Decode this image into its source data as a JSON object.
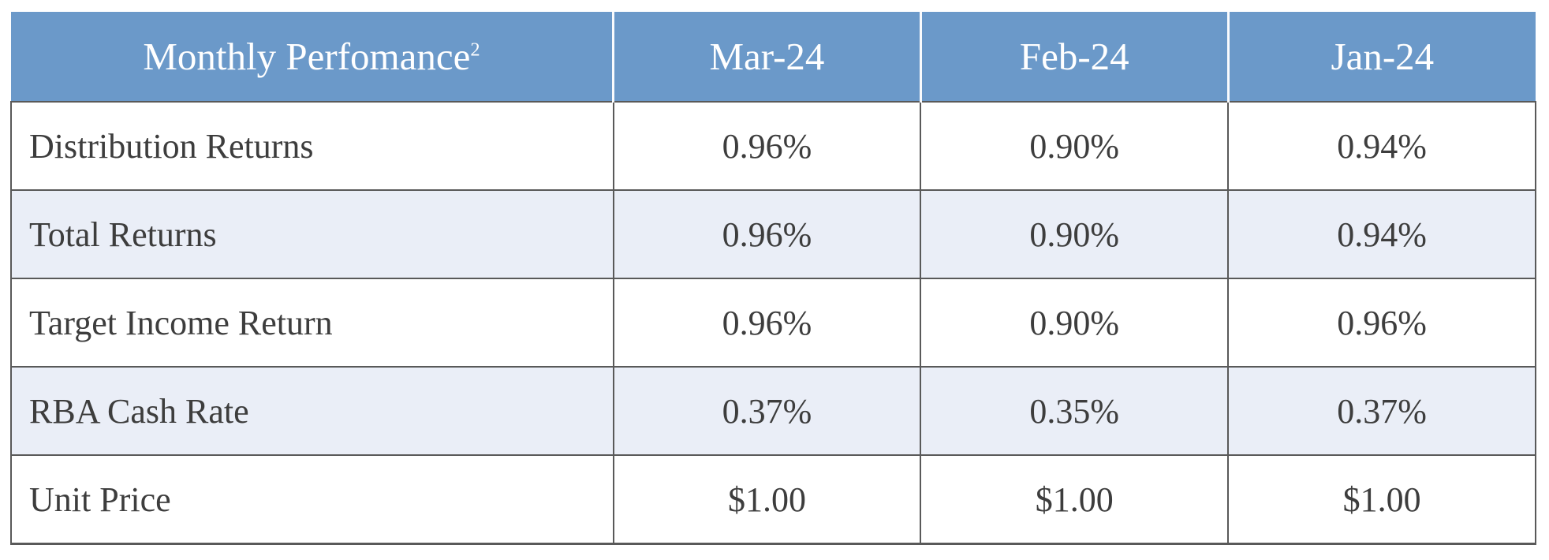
{
  "table": {
    "title": "Monthly Perfomance",
    "title_superscript": "2",
    "columns": [
      "Mar-24",
      "Feb-24",
      "Jan-24"
    ],
    "rows": [
      {
        "label": "Distribution Returns",
        "values": [
          "0.96%",
          "0.90%",
          "0.94%"
        ]
      },
      {
        "label": "Total Returns",
        "values": [
          "0.96%",
          "0.90%",
          "0.94%"
        ]
      },
      {
        "label": "Target Income Return",
        "values": [
          "0.96%",
          "0.90%",
          "0.96%"
        ]
      },
      {
        "label": "RBA Cash Rate",
        "values": [
          "0.37%",
          "0.35%",
          "0.37%"
        ]
      },
      {
        "label": "Unit Price",
        "values": [
          "$1.00",
          "$1.00",
          "$1.00"
        ]
      }
    ],
    "colors": {
      "header_bg": "#6b99c9",
      "header_text": "#ffffff",
      "row_alt_bg": "#eaeef7",
      "border": "#595959",
      "body_text": "#3d3d3d"
    }
  }
}
